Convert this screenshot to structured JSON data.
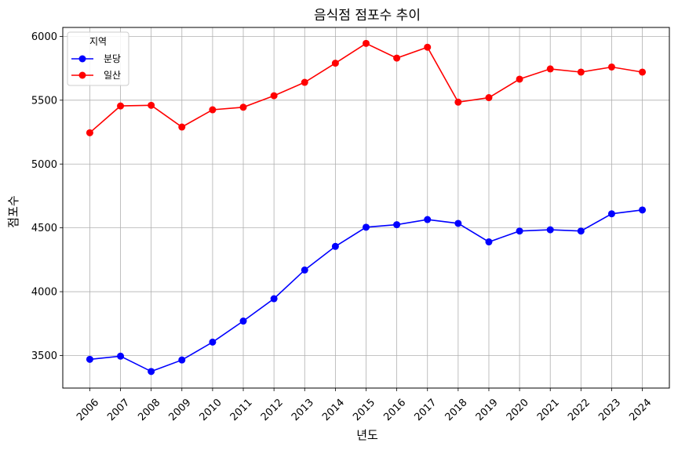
{
  "chart_data": {
    "type": "line",
    "title": "음식점 점포수 추이",
    "xlabel": "년도",
    "ylabel": "점포수",
    "x": [
      "2006",
      "2007",
      "2008",
      "2009",
      "2010",
      "2011",
      "2012",
      "2013",
      "2014",
      "2015",
      "2016",
      "2017",
      "2018",
      "2019",
      "2020",
      "2021",
      "2022",
      "2023",
      "2024"
    ],
    "yticks": [
      3500,
      4000,
      4500,
      5000,
      5500,
      6000
    ],
    "ylim": [
      3245,
      6070
    ],
    "grid": true,
    "legend": {
      "title": "지역",
      "placement": "top-left"
    },
    "series": [
      {
        "name": "분당",
        "color": "#0000ff",
        "values": [
          3470,
          3495,
          3375,
          3465,
          3605,
          3770,
          3945,
          4170,
          4355,
          4505,
          4525,
          4565,
          4535,
          4390,
          4475,
          4485,
          4475,
          4610,
          4640
        ]
      },
      {
        "name": "일산",
        "color": "#ff0000",
        "values": [
          5245,
          5455,
          5460,
          5290,
          5425,
          5445,
          5535,
          5640,
          5790,
          5945,
          5830,
          5915,
          5485,
          5520,
          5665,
          5745,
          5720,
          5760,
          5720
        ]
      }
    ]
  }
}
